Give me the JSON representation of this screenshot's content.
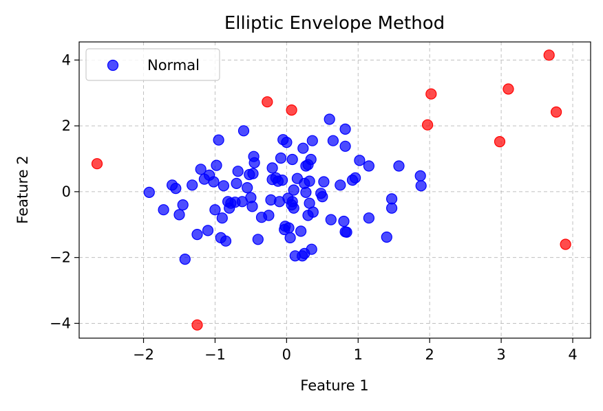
{
  "chart_data": {
    "type": "scatter",
    "title": "Elliptic Envelope Method",
    "xlabel": "Feature 1",
    "ylabel": "Feature 2",
    "xlim": [
      -2.9,
      4.25
    ],
    "ylim": [
      -4.45,
      4.55
    ],
    "xticks": [
      -2,
      -1,
      0,
      1,
      2,
      3,
      4
    ],
    "yticks": [
      -4,
      -2,
      0,
      2,
      4
    ],
    "grid": true,
    "legend": "top-left",
    "series": [
      {
        "name": "Normal",
        "color": "#0000ff",
        "points": [
          [
            -1.92,
            -0.02
          ],
          [
            -1.72,
            -0.55
          ],
          [
            -1.6,
            0.2
          ],
          [
            -1.55,
            0.1
          ],
          [
            -1.5,
            -0.7
          ],
          [
            -1.45,
            -0.4
          ],
          [
            -1.42,
            -2.05
          ],
          [
            -1.32,
            0.2
          ],
          [
            -1.25,
            -1.3
          ],
          [
            -1.2,
            0.68
          ],
          [
            -1.15,
            0.38
          ],
          [
            -1.1,
            -1.18
          ],
          [
            -1.08,
            0.5
          ],
          [
            -1.02,
            0.3
          ],
          [
            -1.0,
            -0.55
          ],
          [
            -0.98,
            0.8
          ],
          [
            -0.95,
            1.57
          ],
          [
            -0.92,
            -1.4
          ],
          [
            -0.9,
            -0.8
          ],
          [
            -0.88,
            0.18
          ],
          [
            -0.85,
            -1.5
          ],
          [
            -0.82,
            -0.3
          ],
          [
            -0.8,
            -0.5
          ],
          [
            -0.78,
            -0.35
          ],
          [
            -0.72,
            -0.32
          ],
          [
            -0.7,
            0.25
          ],
          [
            -0.68,
            0.62
          ],
          [
            -0.62,
            -0.3
          ],
          [
            -0.6,
            1.85
          ],
          [
            -0.55,
            0.12
          ],
          [
            -0.52,
            0.52
          ],
          [
            -0.5,
            -0.18
          ],
          [
            -0.48,
            -0.45
          ],
          [
            -0.47,
            0.55
          ],
          [
            -0.46,
            1.07
          ],
          [
            -0.45,
            0.88
          ],
          [
            -0.4,
            -1.45
          ],
          [
            -0.35,
            -0.78
          ],
          [
            -0.25,
            -0.72
          ],
          [
            -0.22,
            -0.25
          ],
          [
            -0.2,
            0.72
          ],
          [
            -0.2,
            0.37
          ],
          [
            -0.15,
            0.42
          ],
          [
            -0.12,
            0.32
          ],
          [
            -0.1,
            -0.3
          ],
          [
            -0.08,
            1.02
          ],
          [
            -0.06,
            0.35
          ],
          [
            -0.05,
            1.58
          ],
          [
            -0.03,
            -1.15
          ],
          [
            -0.02,
            -1.05
          ],
          [
            0.0,
            1.5
          ],
          [
            0.02,
            -0.2
          ],
          [
            0.03,
            -1.1
          ],
          [
            0.05,
            -1.4
          ],
          [
            0.07,
            -0.4
          ],
          [
            0.08,
            0.98
          ],
          [
            0.08,
            -0.3
          ],
          [
            0.1,
            0.05
          ],
          [
            0.1,
            -0.5
          ],
          [
            0.12,
            -1.95
          ],
          [
            0.15,
            0.4
          ],
          [
            0.2,
            -1.2
          ],
          [
            0.22,
            -1.95
          ],
          [
            0.23,
            1.32
          ],
          [
            0.25,
            0.25
          ],
          [
            0.25,
            -1.88
          ],
          [
            0.27,
            -0.02
          ],
          [
            0.27,
            0.78
          ],
          [
            0.3,
            -0.72
          ],
          [
            0.3,
            0.82
          ],
          [
            0.32,
            0.32
          ],
          [
            0.32,
            -0.35
          ],
          [
            0.34,
            0.98
          ],
          [
            0.35,
            -1.75
          ],
          [
            0.36,
            1.55
          ],
          [
            0.37,
            -0.62
          ],
          [
            0.48,
            -0.05
          ],
          [
            0.5,
            -0.15
          ],
          [
            0.52,
            0.3
          ],
          [
            0.6,
            2.2
          ],
          [
            0.62,
            -0.85
          ],
          [
            0.65,
            1.55
          ],
          [
            0.75,
            0.2
          ],
          [
            0.8,
            -0.9
          ],
          [
            0.82,
            1.38
          ],
          [
            0.82,
            1.9
          ],
          [
            0.82,
            -1.22
          ],
          [
            0.84,
            -1.23
          ],
          [
            0.92,
            0.35
          ],
          [
            0.96,
            0.42
          ],
          [
            1.02,
            0.95
          ],
          [
            1.15,
            0.78
          ],
          [
            1.15,
            -0.8
          ],
          [
            1.4,
            -1.38
          ],
          [
            1.47,
            -0.22
          ],
          [
            1.47,
            -0.5
          ],
          [
            1.57,
            0.78
          ],
          [
            1.87,
            0.48
          ],
          [
            1.88,
            0.18
          ]
        ]
      },
      {
        "name": "",
        "color": "#ff0000",
        "points": [
          [
            -2.65,
            0.85
          ],
          [
            -1.25,
            -4.05
          ],
          [
            -0.27,
            2.73
          ],
          [
            0.07,
            2.48
          ],
          [
            1.97,
            2.03
          ],
          [
            2.02,
            2.97
          ],
          [
            2.98,
            1.52
          ],
          [
            3.1,
            3.12
          ],
          [
            3.67,
            4.15
          ],
          [
            3.77,
            2.42
          ],
          [
            3.9,
            -1.6
          ]
        ]
      }
    ]
  }
}
